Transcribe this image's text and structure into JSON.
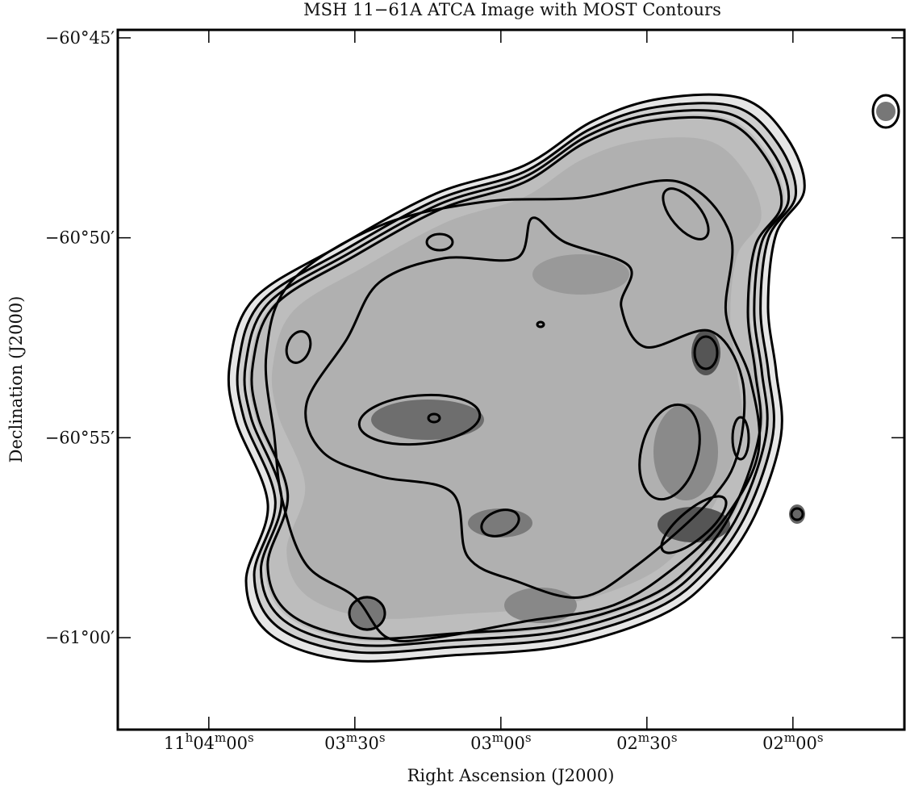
{
  "chart_data": {
    "type": "image",
    "title": "MSH 11−61A ATCA Image with MOST Contours",
    "x_label": "Right Ascension (J2000)",
    "y_label": "Declination (J2000)",
    "xlim": [
      39858.7,
      39697.1
    ],
    "xticks": [
      {
        "value": 39840,
        "label": "11h04m00s"
      },
      {
        "value": 39810,
        "label": "03m30s"
      },
      {
        "value": 39780,
        "label": "03m00s"
      },
      {
        "value": 39750,
        "label": "02m30s"
      },
      {
        "value": 39720,
        "label": "02m00s"
      }
    ],
    "ylim": [
      -3662.3,
      -3644.8
    ],
    "yticks": [
      {
        "value": -3645,
        "label": "−60°45′"
      },
      {
        "value": -3650,
        "label": "−60°50′"
      },
      {
        "value": -3655,
        "label": "−60°55′"
      },
      {
        "value": -3660,
        "label": "−61°00′"
      }
    ]
  }
}
